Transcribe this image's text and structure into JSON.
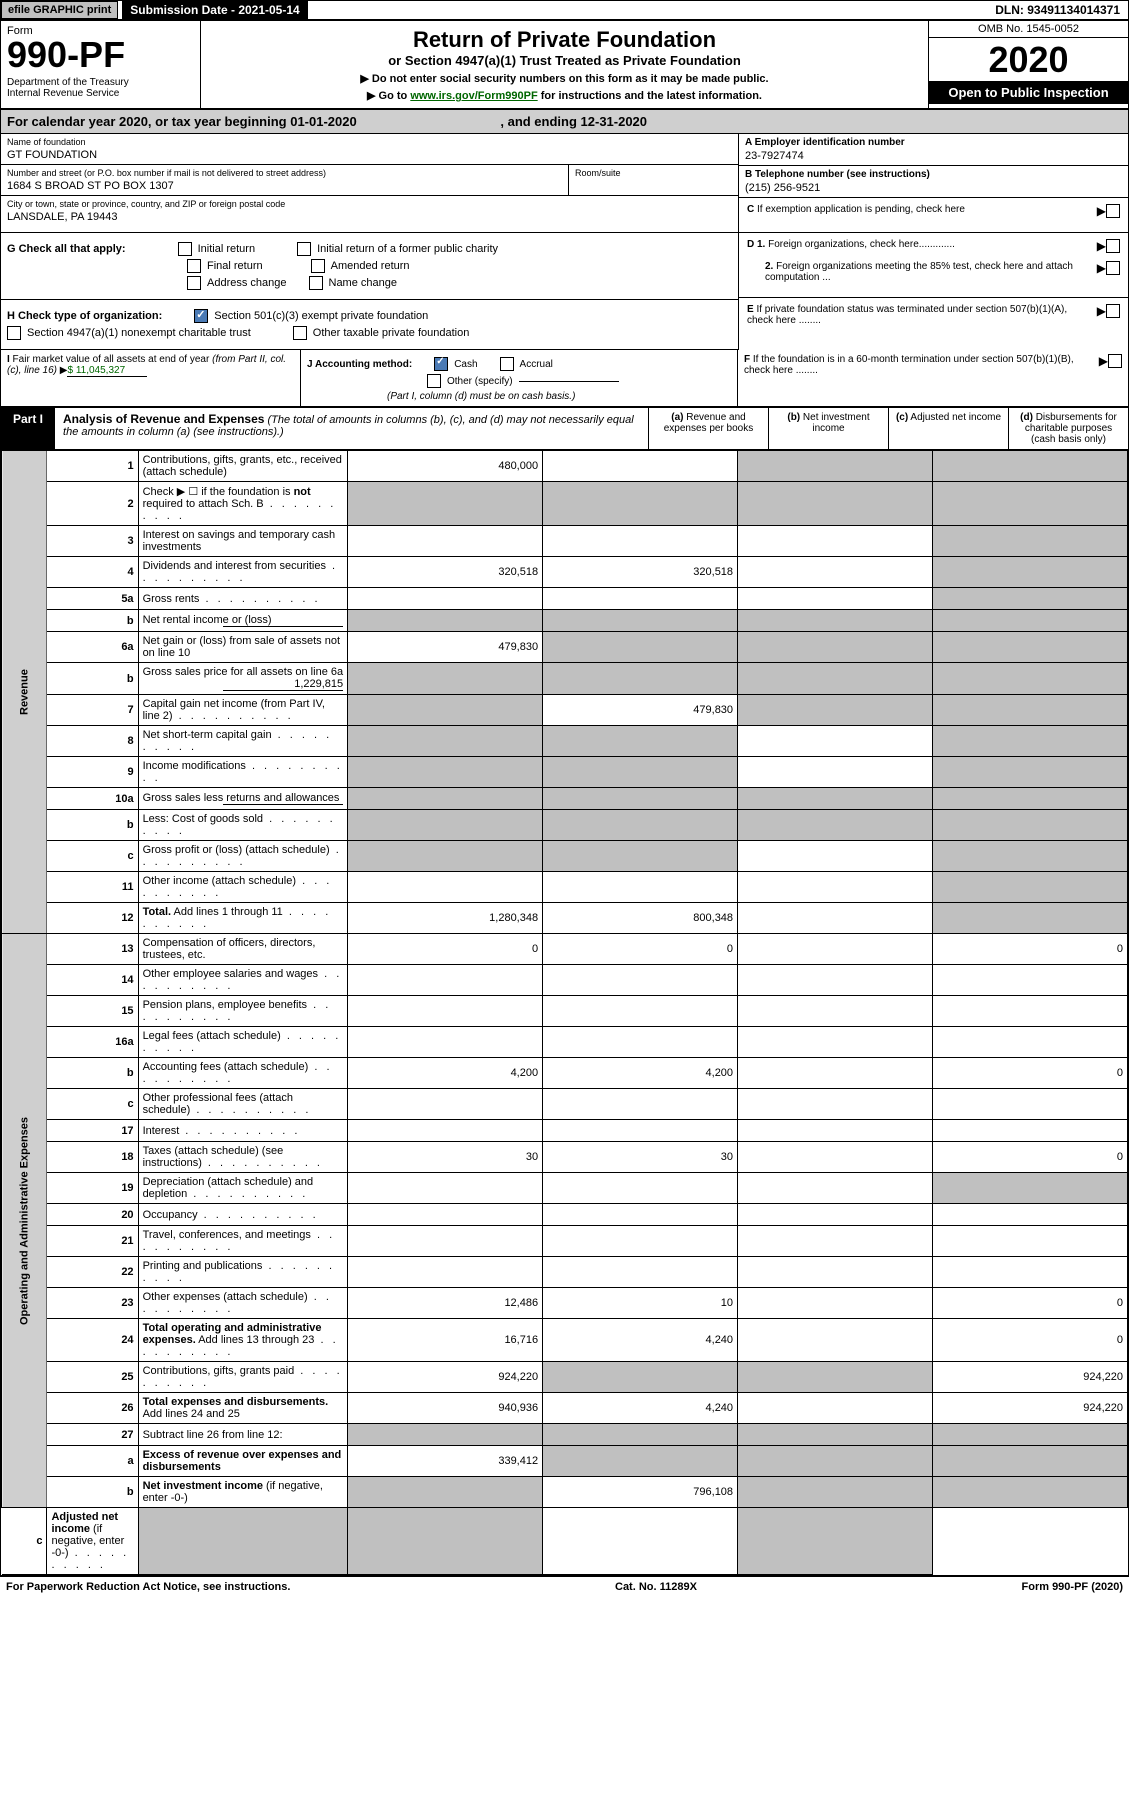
{
  "top": {
    "efile": "efile GRAPHIC print",
    "sub_date": "Submission Date - 2021-05-14",
    "dln": "DLN: 93491134014371"
  },
  "header": {
    "form_label": "Form",
    "form_num": "990-PF",
    "dept": "Department of the Treasury\nInternal Revenue Service",
    "title": "Return of Private Foundation",
    "subtitle": "or Section 4947(a)(1) Trust Treated as Private Foundation",
    "instr1": "▶ Do not enter social security numbers on this form as it may be made public.",
    "instr2_pre": "▶ Go to ",
    "instr2_link": "www.irs.gov/Form990PF",
    "instr2_post": " for instructions and the latest information.",
    "omb": "OMB No. 1545-0052",
    "year": "2020",
    "open": "Open to Public Inspection"
  },
  "cal_year": {
    "text1": "For calendar year 2020, or tax year beginning 01-01-2020",
    "text2": ", and ending 12-31-2020"
  },
  "info": {
    "name_label": "Name of foundation",
    "name": "GT FOUNDATION",
    "addr_label": "Number and street (or P.O. box number if mail is not delivered to street address)",
    "addr": "1684 S BROAD ST PO BOX 1307",
    "room_label": "Room/suite",
    "city_label": "City or town, state or province, country, and ZIP or foreign postal code",
    "city": "LANSDALE, PA  19443",
    "ein_label": "A Employer identification number",
    "ein": "23-7927474",
    "phone_label": "B Telephone number (see instructions)",
    "phone": "(215) 256-9521",
    "c_text": "C If exemption application is pending, check here",
    "d1": "D 1. Foreign organizations, check here.............",
    "d2": "2. Foreign organizations meeting the 85% test, check here and attach computation ...",
    "e_text": "E  If private foundation status was terminated under section 507(b)(1)(A), check here ........",
    "f_text": "F  If the foundation is in a 60-month termination under section 507(b)(1)(B), check here ........"
  },
  "checks": {
    "g_label": "G Check all that apply:",
    "initial": "Initial return",
    "initial_former": "Initial return of a former public charity",
    "final": "Final return",
    "amended": "Amended return",
    "addr_change": "Address change",
    "name_change": "Name change",
    "h_label": "H Check type of organization:",
    "h1": "Section 501(c)(3) exempt private foundation",
    "h2": "Section 4947(a)(1) nonexempt charitable trust",
    "h3": "Other taxable private foundation",
    "i_label": "I Fair market value of all assets at end of year (from Part II, col. (c), line 16)",
    "i_val": "$  11,045,327",
    "j_label": "J Accounting method:",
    "j_cash": "Cash",
    "j_accrual": "Accrual",
    "j_other": "Other (specify)",
    "j_note": "(Part I, column (d) must be on cash basis.)"
  },
  "part1": {
    "badge": "Part I",
    "title": "Analysis of Revenue and Expenses",
    "note": "(The total of amounts in columns (b), (c), and (d) may not necessarily equal the amounts in column (a) (see instructions).)",
    "col_a": "(a)   Revenue and expenses per books",
    "col_b": "(b)   Net investment income",
    "col_c": "(c)   Adjusted net income",
    "col_d": "(d)   Disbursements for charitable purposes (cash basis only)"
  },
  "side": {
    "revenue": "Revenue",
    "opex": "Operating and Administrative Expenses"
  },
  "rows": [
    {
      "n": "1",
      "d": "Contributions, gifts, grants, etc., received (attach schedule)",
      "a": "480,000",
      "b": "",
      "c": "s",
      "dd": "s"
    },
    {
      "n": "2",
      "d": "Check ▶ ☐ if the foundation is <b>not</b> required to attach Sch. B",
      "dots": true,
      "a": "s",
      "b": "s",
      "c": "s",
      "dd": "s"
    },
    {
      "n": "3",
      "d": "Interest on savings and temporary cash investments",
      "a": "",
      "b": "",
      "c": "",
      "dd": "s"
    },
    {
      "n": "4",
      "d": "Dividends and interest from securities",
      "dots": true,
      "a": "320,518",
      "b": "320,518",
      "c": "",
      "dd": "s"
    },
    {
      "n": "5a",
      "d": "Gross rents",
      "dots": true,
      "a": "",
      "b": "",
      "c": "",
      "dd": "s"
    },
    {
      "n": "b",
      "d": "Net rental income or (loss)",
      "inline": true,
      "a": "s",
      "b": "s",
      "c": "s",
      "dd": "s"
    },
    {
      "n": "6a",
      "d": "Net gain or (loss) from sale of assets not on line 10",
      "a": "479,830",
      "b": "s",
      "c": "s",
      "dd": "s"
    },
    {
      "n": "b",
      "d": "Gross sales price for all assets on line 6a",
      "inline": true,
      "ival": "1,229,815",
      "a": "s",
      "b": "s",
      "c": "s",
      "dd": "s"
    },
    {
      "n": "7",
      "d": "Capital gain net income (from Part IV, line 2)",
      "dots": true,
      "a": "s",
      "b": "479,830",
      "c": "s",
      "dd": "s"
    },
    {
      "n": "8",
      "d": "Net short-term capital gain",
      "dots": true,
      "a": "s",
      "b": "s",
      "c": "",
      "dd": "s"
    },
    {
      "n": "9",
      "d": "Income modifications",
      "dots": true,
      "a": "s",
      "b": "s",
      "c": "",
      "dd": "s"
    },
    {
      "n": "10a",
      "d": "Gross sales less returns and allowances",
      "inline": true,
      "a": "s",
      "b": "s",
      "c": "s",
      "dd": "s"
    },
    {
      "n": "b",
      "d": "Less: Cost of goods sold",
      "dots": true,
      "inline": true,
      "a": "s",
      "b": "s",
      "c": "s",
      "dd": "s"
    },
    {
      "n": "c",
      "d": "Gross profit or (loss) (attach schedule)",
      "dots": true,
      "a": "s",
      "b": "s",
      "c": "",
      "dd": "s"
    },
    {
      "n": "11",
      "d": "Other income (attach schedule)",
      "dots": true,
      "a": "",
      "b": "",
      "c": "",
      "dd": "s"
    },
    {
      "n": "12",
      "d": "<b>Total.</b> Add lines 1 through 11",
      "dots": true,
      "a": "1,280,348",
      "b": "800,348",
      "c": "",
      "dd": "s"
    },
    {
      "n": "13",
      "d": "Compensation of officers, directors, trustees, etc.",
      "a": "0",
      "b": "0",
      "c": "",
      "dd": "0"
    },
    {
      "n": "14",
      "d": "Other employee salaries and wages",
      "dots": true,
      "a": "",
      "b": "",
      "c": "",
      "dd": ""
    },
    {
      "n": "15",
      "d": "Pension plans, employee benefits",
      "dots": true,
      "a": "",
      "b": "",
      "c": "",
      "dd": ""
    },
    {
      "n": "16a",
      "d": "Legal fees (attach schedule)",
      "dots": true,
      "a": "",
      "b": "",
      "c": "",
      "dd": ""
    },
    {
      "n": "b",
      "d": "Accounting fees (attach schedule)",
      "dots": true,
      "a": "4,200",
      "b": "4,200",
      "c": "",
      "dd": "0"
    },
    {
      "n": "c",
      "d": "Other professional fees (attach schedule)",
      "dots": true,
      "a": "",
      "b": "",
      "c": "",
      "dd": ""
    },
    {
      "n": "17",
      "d": "Interest",
      "dots": true,
      "a": "",
      "b": "",
      "c": "",
      "dd": ""
    },
    {
      "n": "18",
      "d": "Taxes (attach schedule) (see instructions)",
      "dots": true,
      "a": "30",
      "b": "30",
      "c": "",
      "dd": "0"
    },
    {
      "n": "19",
      "d": "Depreciation (attach schedule) and depletion",
      "dots": true,
      "a": "",
      "b": "",
      "c": "",
      "dd": "s"
    },
    {
      "n": "20",
      "d": "Occupancy",
      "dots": true,
      "a": "",
      "b": "",
      "c": "",
      "dd": ""
    },
    {
      "n": "21",
      "d": "Travel, conferences, and meetings",
      "dots": true,
      "a": "",
      "b": "",
      "c": "",
      "dd": ""
    },
    {
      "n": "22",
      "d": "Printing and publications",
      "dots": true,
      "a": "",
      "b": "",
      "c": "",
      "dd": ""
    },
    {
      "n": "23",
      "d": "Other expenses (attach schedule)",
      "dots": true,
      "a": "12,486",
      "b": "10",
      "c": "",
      "dd": "0"
    },
    {
      "n": "24",
      "d": "<b>Total operating and administrative expenses.</b> Add lines 13 through 23",
      "dots": true,
      "a": "16,716",
      "b": "4,240",
      "c": "",
      "dd": "0"
    },
    {
      "n": "25",
      "d": "Contributions, gifts, grants paid",
      "dots": true,
      "a": "924,220",
      "b": "s",
      "c": "s",
      "dd": "924,220"
    },
    {
      "n": "26",
      "d": "<b>Total expenses and disbursements.</b> Add lines 24 and 25",
      "a": "940,936",
      "b": "4,240",
      "c": "",
      "dd": "924,220"
    },
    {
      "n": "27",
      "d": "Subtract line 26 from line 12:",
      "a": "s",
      "b": "s",
      "c": "s",
      "dd": "s"
    },
    {
      "n": "a",
      "d": "<b>Excess of revenue over expenses and disbursements</b>",
      "a": "339,412",
      "b": "s",
      "c": "s",
      "dd": "s"
    },
    {
      "n": "b",
      "d": "<b>Net investment income</b> (if negative, enter -0-)",
      "a": "s",
      "b": "796,108",
      "c": "s",
      "dd": "s"
    },
    {
      "n": "c",
      "d": "<b>Adjusted net income</b> (if negative, enter -0-)",
      "dots": true,
      "a": "s",
      "b": "s",
      "c": "",
      "dd": "s"
    }
  ],
  "footer": {
    "left": "For Paperwork Reduction Act Notice, see instructions.",
    "mid": "Cat. No. 11289X",
    "right": "Form 990-PF (2020)"
  }
}
